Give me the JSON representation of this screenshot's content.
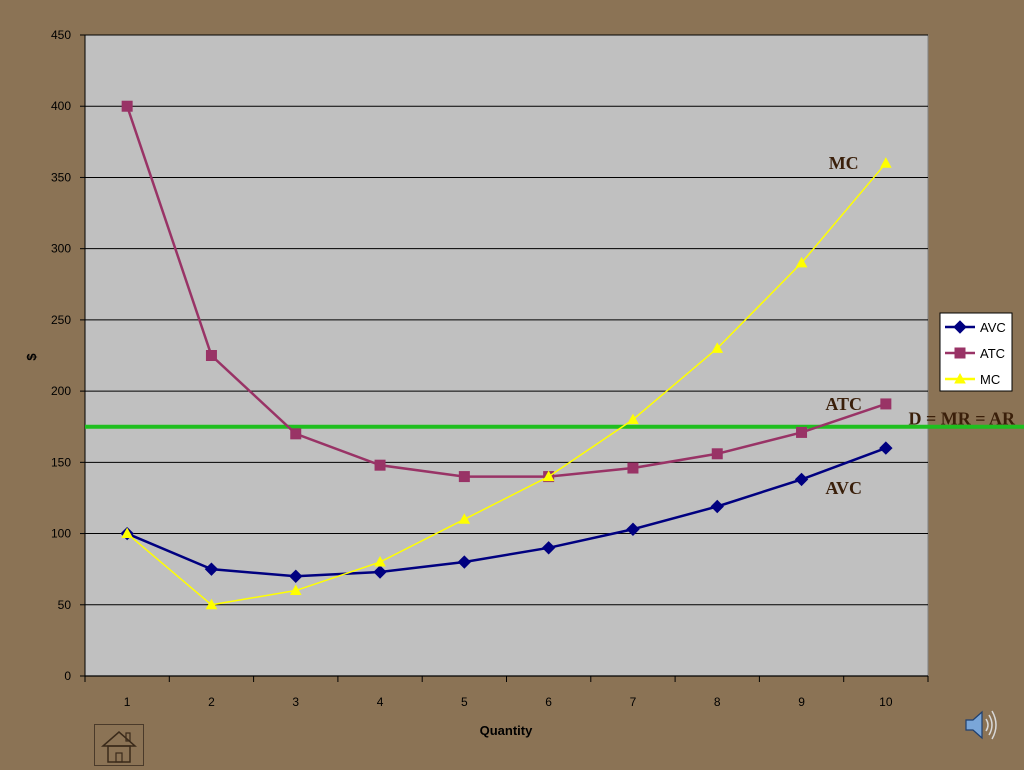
{
  "chart_data": {
    "type": "line",
    "title": "",
    "xlabel": "Quantity",
    "ylabel": "$",
    "x": [
      1,
      2,
      3,
      4,
      5,
      6,
      7,
      8,
      9,
      10
    ],
    "ylim": [
      0,
      450
    ],
    "yticks": [
      0,
      50,
      100,
      150,
      200,
      250,
      300,
      350,
      400,
      450
    ],
    "grid": true,
    "legend_position": "right",
    "series": [
      {
        "name": "AVC",
        "values": [
          100,
          75,
          70,
          73,
          80,
          90,
          103,
          119,
          138,
          160
        ],
        "color": "#000080",
        "marker": "diamond"
      },
      {
        "name": "ATC",
        "values": [
          400,
          225,
          170,
          148,
          140,
          140,
          146,
          156,
          171,
          191
        ],
        "color": "#993366",
        "marker": "square"
      },
      {
        "name": "MC",
        "values": [
          100,
          50,
          60,
          80,
          110,
          140,
          180,
          230,
          290,
          360
        ],
        "color": "#ffff00",
        "marker": "triangle"
      }
    ],
    "horizontal_line": {
      "label": "D = MR = AR",
      "y": 175,
      "color": "#1fbf1f"
    },
    "annotations": [
      {
        "text": "MC",
        "x": 9.5,
        "y": 360
      },
      {
        "text": "ATC",
        "x": 9.5,
        "y": 191
      },
      {
        "text": "AVC",
        "x": 9.5,
        "y": 132
      }
    ],
    "plot_background": "#c0c0c0"
  },
  "icons": {
    "home": "home-icon",
    "sound": "speaker-icon"
  }
}
